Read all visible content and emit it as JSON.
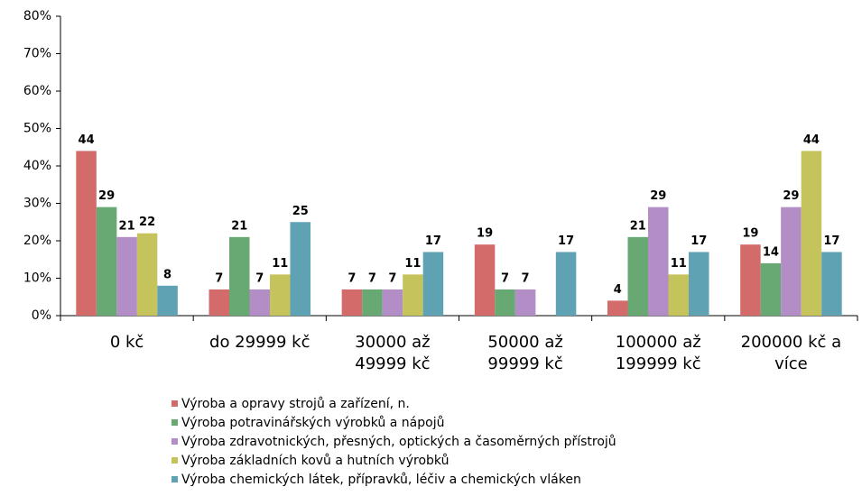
{
  "chart_data": {
    "type": "bar",
    "categories": [
      "0 kč",
      "do 29999 kč",
      "30000 až 49999 kč",
      "50000 až 99999 kč",
      "100000 až 199999 kč",
      "200000 kč a více"
    ],
    "series": [
      {
        "name": "Výroba a opravy strojů a zařízení, n.",
        "color": "#d46b6b",
        "values": [
          44,
          7,
          7,
          19,
          4,
          19
        ]
      },
      {
        "name": "Výroba potravinářských výrobků a nápojů",
        "color": "#68a873",
        "values": [
          29,
          21,
          7,
          7,
          21,
          14
        ]
      },
      {
        "name": "Výroba zdravotnických, přesných, optických a časoměrných přístrojů",
        "color": "#b38dc6",
        "values": [
          21,
          7,
          7,
          7,
          29,
          29
        ]
      },
      {
        "name": "Výroba základních kovů a hutních výrobků",
        "color": "#c5c35b",
        "values": [
          22,
          11,
          11,
          null,
          11,
          44
        ]
      },
      {
        "name": "Výroba chemických látek, přípravků, léčiv a chemických vláken",
        "color": "#5fa2b3",
        "values": [
          8,
          25,
          17,
          17,
          17,
          17
        ]
      }
    ],
    "ylim": [
      0,
      80
    ],
    "yticks": [
      {
        "value": 0,
        "label": "0%"
      },
      {
        "value": 10,
        "label": "10%"
      },
      {
        "value": 20,
        "label": "20%"
      },
      {
        "value": 30,
        "label": "30%"
      },
      {
        "value": 40,
        "label": "40%"
      },
      {
        "value": 50,
        "label": "50%"
      },
      {
        "value": 60,
        "label": "60%"
      },
      {
        "value": 70,
        "label": "70%"
      },
      {
        "value": 80,
        "label": "80%"
      }
    ]
  }
}
